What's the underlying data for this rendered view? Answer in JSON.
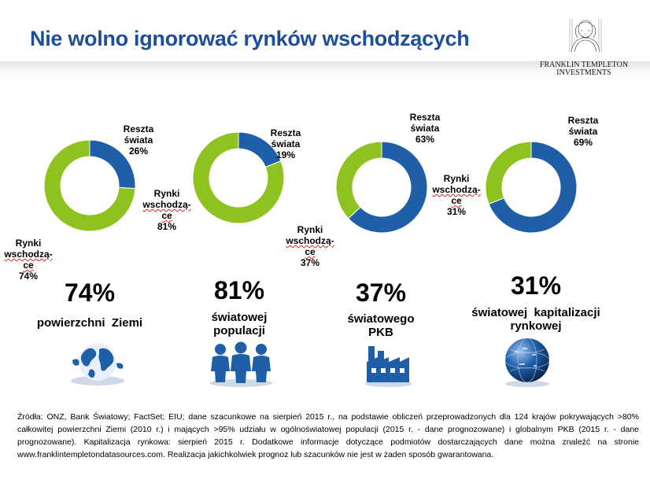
{
  "title": "Nie wolno ignorować rynków wschodzących",
  "logo": {
    "line1": "FRANKLIN TEMPLETON",
    "line2": "INVESTMENTS"
  },
  "colors": {
    "emerging": "#8dc21f",
    "rest": "#1f5fa8",
    "title": "#1f4e99"
  },
  "chart_data": [
    {
      "type": "pie",
      "slices": [
        {
          "label": "Reszta świata",
          "value": 26
        },
        {
          "label": "Rynki wschodzące",
          "value": 74
        }
      ]
    },
    {
      "type": "pie",
      "slices": [
        {
          "label": "Reszta świata",
          "value": 19
        },
        {
          "label": "Rynki wschodzące",
          "value": 81
        }
      ]
    },
    {
      "type": "pie",
      "slices": [
        {
          "label": "Reszta świata",
          "value": 63
        },
        {
          "label": "Rynki wschodzące",
          "value": 37
        }
      ]
    },
    {
      "type": "pie",
      "slices": [
        {
          "label": "Reszta świata",
          "value": 69
        },
        {
          "label": "Rynki wschodzące",
          "value": 31
        }
      ]
    }
  ],
  "labels": [
    {
      "rest_l1": "Reszta",
      "rest_l2": "świata",
      "rest_pct": "26%",
      "em_l1": "Rynki",
      "em_l2": "wschodzą-",
      "em_l3": "ce",
      "em_pct": "74%"
    },
    {
      "rest_l1": "Reszta",
      "rest_l2": "świata",
      "rest_pct": "19%",
      "em_l1": "Rynki",
      "em_l2": "wschodzą-",
      "em_l3": "ce",
      "em_pct": "81%"
    },
    {
      "rest_l1": "Reszta",
      "rest_l2": "świata",
      "rest_pct": "63%",
      "em_l1": "Rynki",
      "em_l2": "wschodzą-",
      "em_l3": "ce",
      "em_pct": "37%"
    },
    {
      "rest_l1": "Reszta",
      "rest_l2": "świata",
      "rest_pct": "69%",
      "em_l1": "Rynki",
      "em_l2": "wschodzą-",
      "em_l3": "ce",
      "em_pct": "31%"
    }
  ],
  "stats": [
    {
      "value": "74%",
      "line1": "powierzchni  Ziemi",
      "line2": "",
      "line3": "",
      "icon": "globe-icon"
    },
    {
      "value": "81%",
      "line1": "światowej",
      "line2": "populacji",
      "line3": "",
      "icon": "people-icon"
    },
    {
      "value": "37%",
      "line1": "światowego",
      "line2": "PKB",
      "line3": "",
      "icon": "factory-icon"
    },
    {
      "value": "31%",
      "line1": "światowej  kapitalizacji",
      "line2": "rynkowej",
      "line3": "",
      "icon": "earth-sphere-icon"
    }
  ],
  "source": "Źródła: ONZ, Bank Światowy; FactSet; EIU; dane szacunkowe na sierpień 2015 r., na podstawie obliczeń przeprowadzonych dla 124 krajów pokrywających >80% całkowitej powierzchni Ziemi (2010 r.) i mających >95% udziału w ogólnoświatowej populacji (2015 r. - dane prognozowane) i globalnym PKB (2015 r. - dane prognozowane). Kapitalizacja rynkowa: sierpień 2015 r. Dodatkowe informacje dotyczące podmiotów dostarczających dane można znaleźć na stronie www.franklintempletondatasources.com. Realizacja jakichkolwiek prognoz lub szacunków nie jest w żaden sposób gwarantowana."
}
